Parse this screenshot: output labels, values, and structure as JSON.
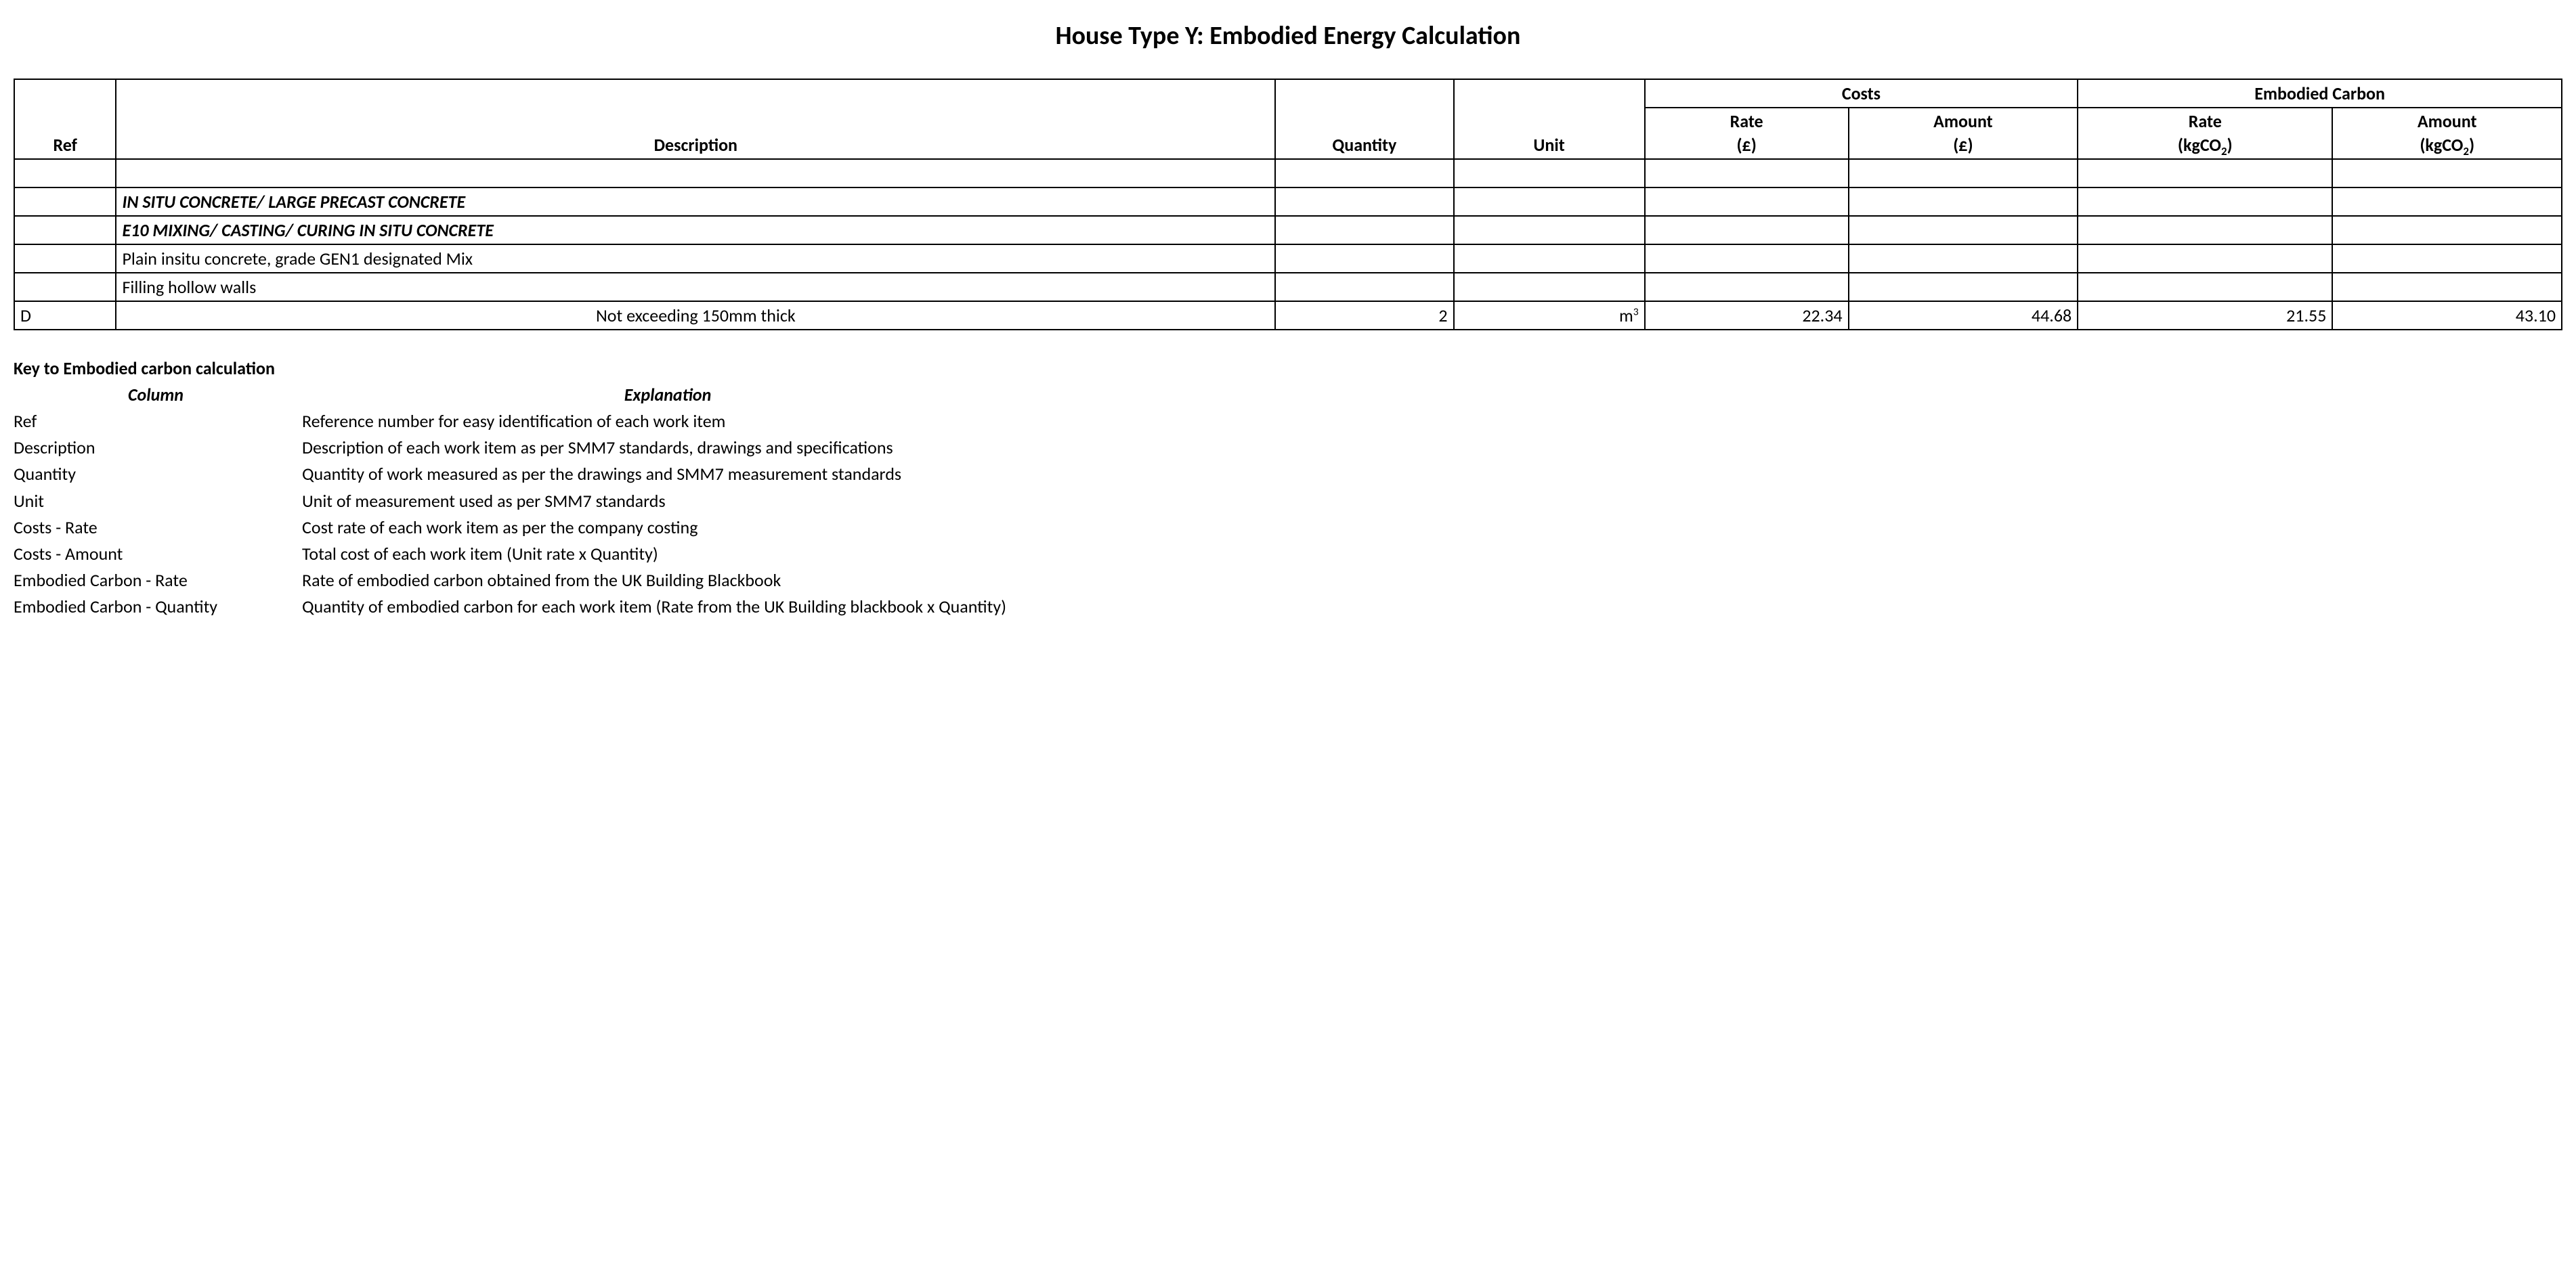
{
  "title": "House Type Y: Embodied Energy Calculation",
  "colors": {
    "background": "#ffffff",
    "text": "#000000",
    "border": "#000000"
  },
  "typography": {
    "title_fontsize_pt": 28,
    "body_fontsize_pt": 20,
    "font_family": "Calibri"
  },
  "table": {
    "type": "table",
    "columns": {
      "ref": "Ref",
      "description": "Description",
      "quantity": "Quantity",
      "unit": "Unit",
      "costs_group": "Costs",
      "embodied_group": "Embodied Carbon",
      "rate_cost_label": "Rate",
      "rate_cost_unit": "(£)",
      "amount_cost_label": "Amount",
      "amount_cost_unit": "(£)",
      "rate_embodied_label": "Rate",
      "rate_embodied_unit_prefix": "(kgCO",
      "rate_embodied_unit_sub": "2",
      "rate_embodied_unit_suffix": ")",
      "amount_embodied_label": "Amount",
      "amount_embodied_unit_prefix": "(kgCO",
      "amount_embodied_unit_sub": "2",
      "amount_embodied_unit_suffix": ")"
    },
    "column_widths_pct": [
      4,
      45.5,
      7,
      7.5,
      8,
      9,
      10,
      9
    ],
    "rows": [
      {
        "ref": "",
        "description": "",
        "style": "blank"
      },
      {
        "ref": "",
        "description": "IN SITU CONCRETE/ LARGE PRECAST CONCRETE",
        "style": "bold-italic"
      },
      {
        "ref": "",
        "description": "E10 MIXING/ CASTING/ CURING IN SITU CONCRETE",
        "style": "bold-italic"
      },
      {
        "ref": "",
        "description": "Plain insitu concrete, grade GEN1 designated Mix",
        "style": "normal"
      },
      {
        "ref": "",
        "description": "Filling hollow walls",
        "style": "normal"
      },
      {
        "ref": "D",
        "description": "Not exceeding 150mm thick",
        "style": "center",
        "quantity": "2",
        "unit_base": "m",
        "unit_sup": "3",
        "cost_rate": "22.34",
        "cost_amount": "44.68",
        "embodied_rate": "21.55",
        "embodied_amount": "43.10"
      }
    ]
  },
  "key": {
    "heading": "Key to Embodied carbon calculation",
    "column_label": "Column",
    "explanation_label": "Explanation",
    "items": [
      {
        "col": "Ref",
        "exp": "Reference number for easy identification of each work item"
      },
      {
        "col": "Description",
        "exp": "Description of each work item as per SMM7 standards, drawings and specifications"
      },
      {
        "col": "Quantity",
        "exp": "Quantity of work measured as per the drawings and SMM7 measurement standards"
      },
      {
        "col": "Unit",
        "exp": "Unit of measurement used as per SMM7 standards"
      },
      {
        "col": "Costs - Rate",
        "exp": "Cost rate of each work item as per the company costing"
      },
      {
        "col": "Costs - Amount",
        "exp": "Total cost of each work item (Unit rate x Quantity)"
      },
      {
        "col": "Embodied Carbon - Rate",
        "exp": "Rate of embodied carbon obtained from the UK Building Blackbook"
      },
      {
        "col": "Embodied Carbon - Quantity",
        "exp": "Quantity of embodied carbon for each work item (Rate from the UK Building blackbook x Quantity)"
      }
    ]
  }
}
